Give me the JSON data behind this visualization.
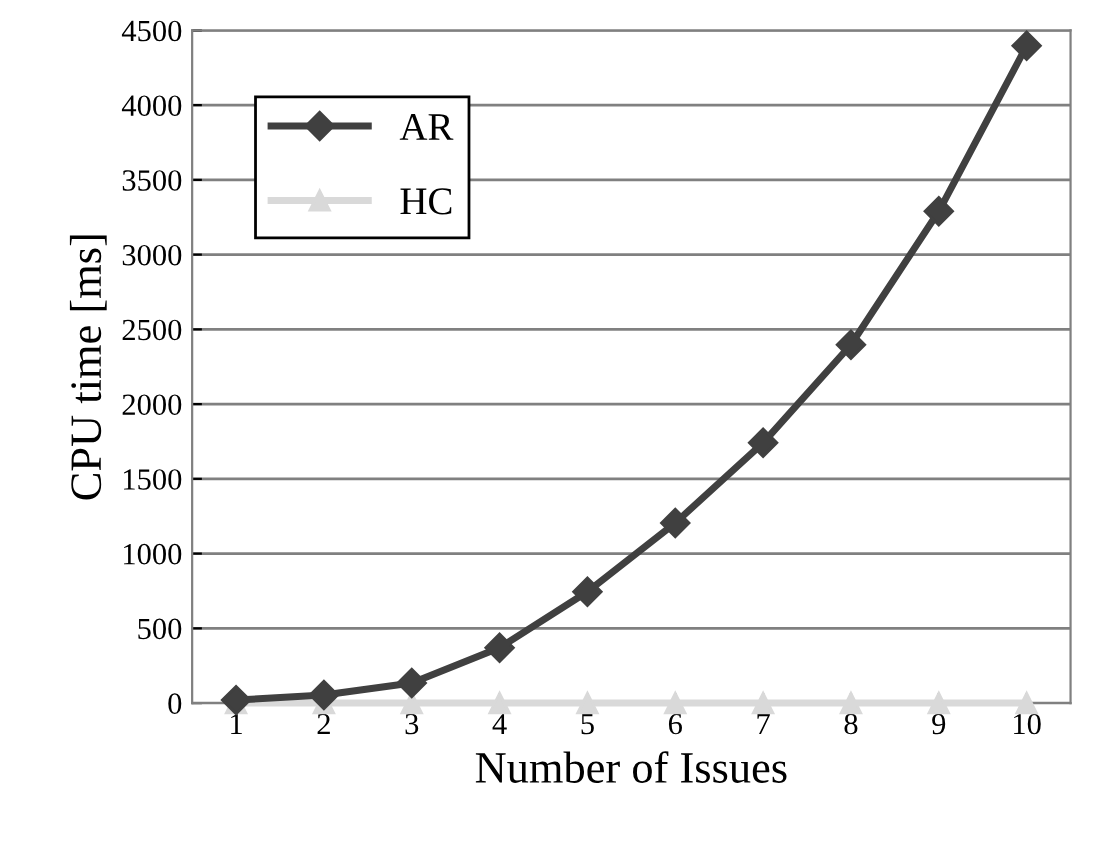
{
  "chart_data": {
    "type": "line",
    "xlabel": "Number of Issues",
    "ylabel": "CPU time [ms]",
    "categories": [
      "1",
      "2",
      "3",
      "4",
      "5",
      "6",
      "7",
      "8",
      "9",
      "10"
    ],
    "series": [
      {
        "name": "AR",
        "color": "#404040",
        "values": [
          20,
          54,
          134,
          370,
          745,
          1205,
          1741,
          2397,
          3290,
          4397
        ],
        "marker": "diamond"
      },
      {
        "name": "HC",
        "color": "#d9d9d9",
        "values": [
          0,
          0,
          0,
          0,
          0,
          0,
          0,
          0,
          0,
          0
        ],
        "marker": "triangle"
      }
    ],
    "ylim": [
      0,
      4500
    ],
    "yticks": [
      0,
      500,
      1000,
      1500,
      2000,
      2500,
      3000,
      3500,
      4000,
      4500
    ],
    "grid": "y",
    "legend": "top left"
  }
}
